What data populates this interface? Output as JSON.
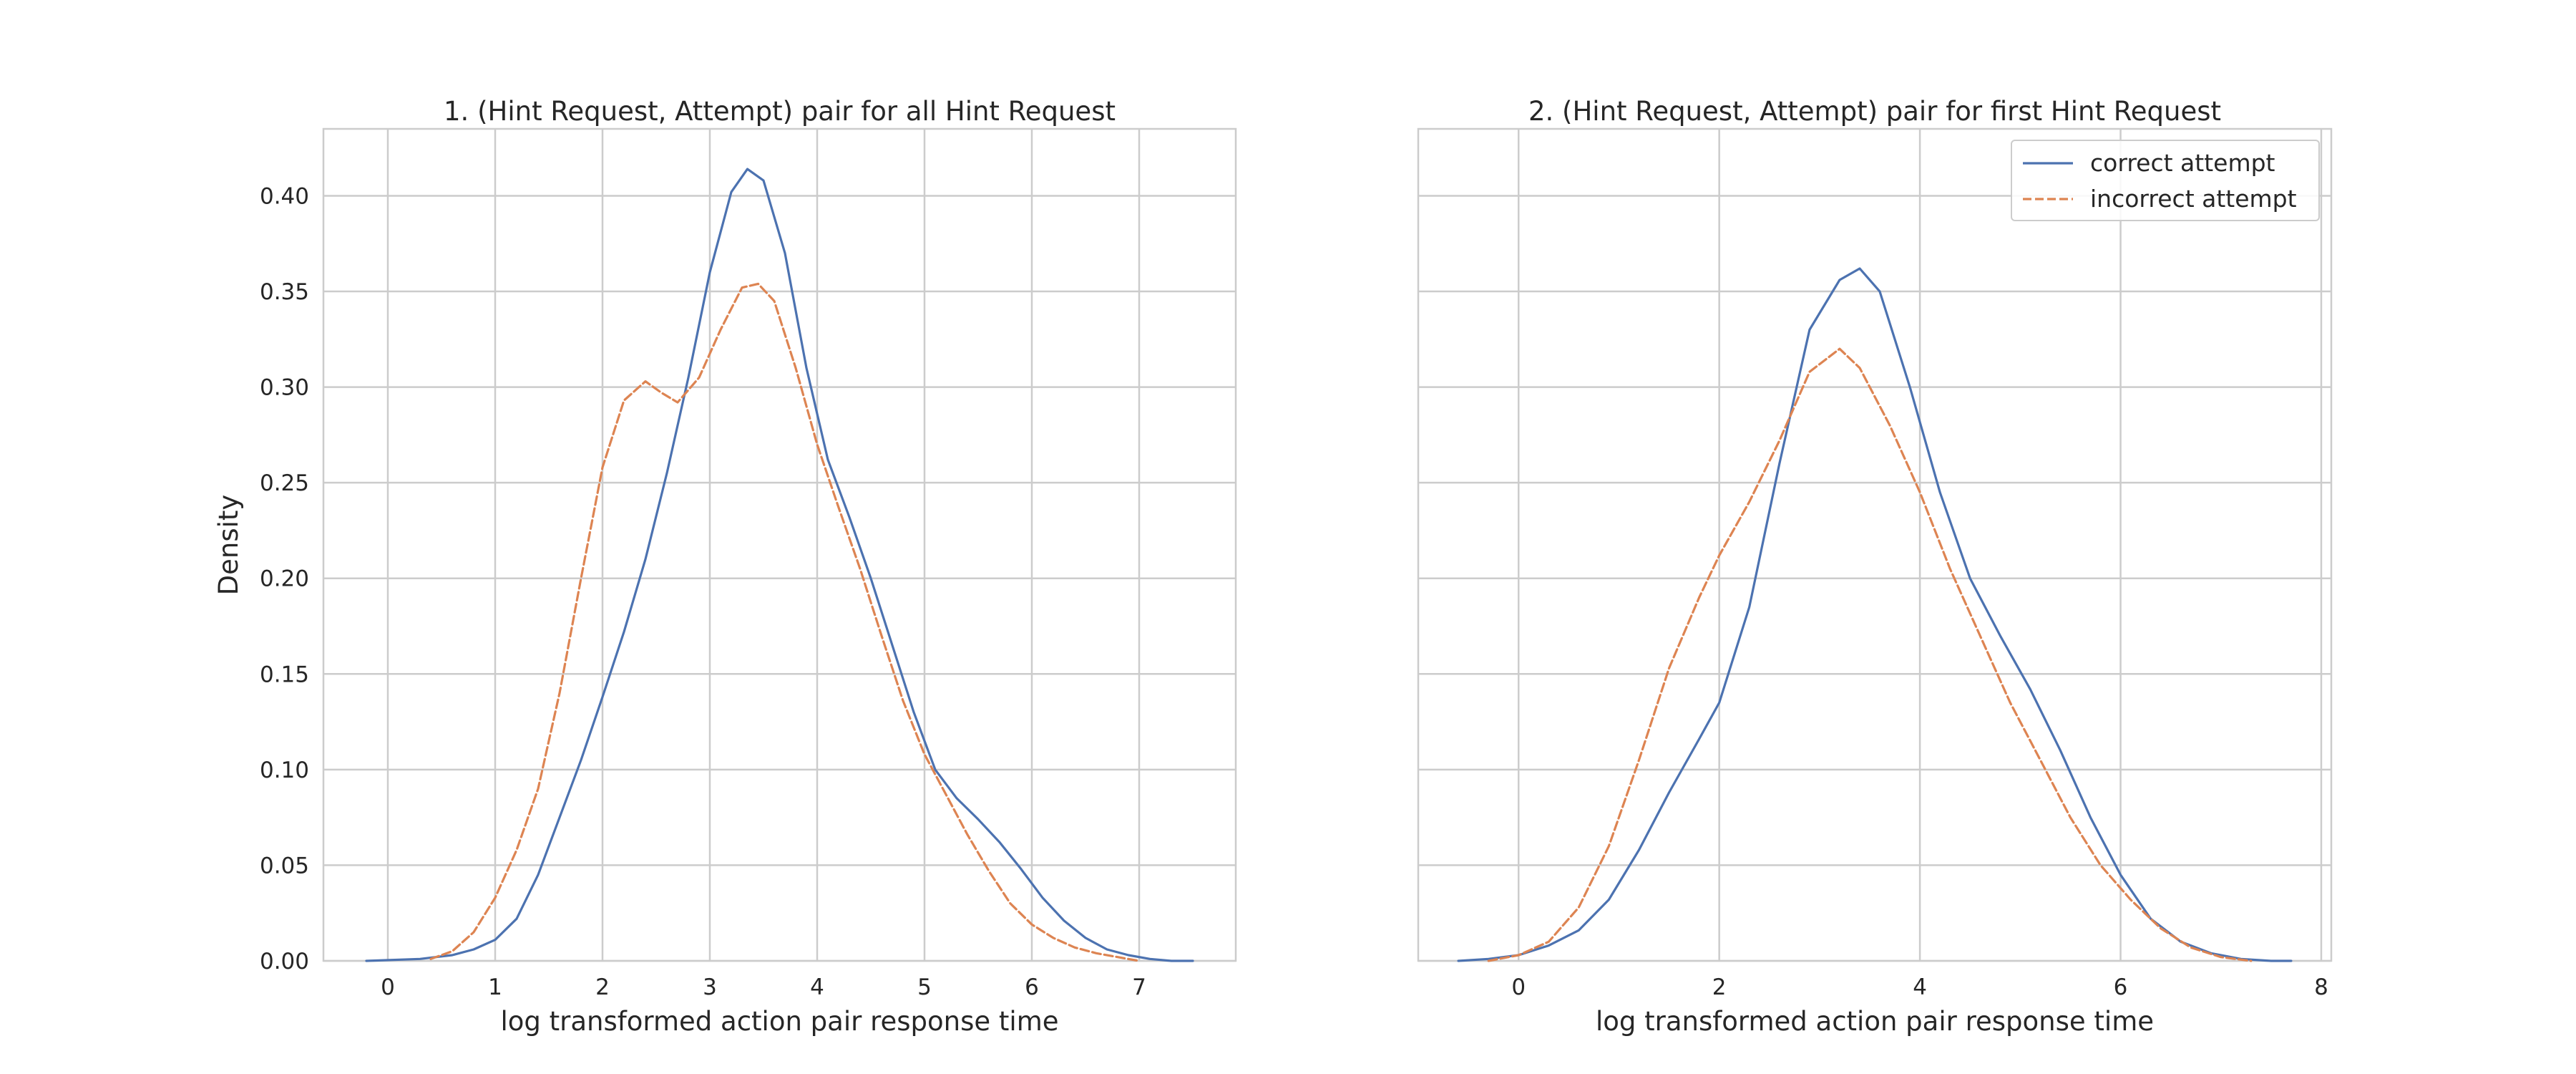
{
  "colors": {
    "correct": "#4c72b0",
    "incorrect": "#dd8452"
  },
  "chart_data": [
    {
      "type": "line",
      "title": "1. (Hint Request, Attempt) pair for all Hint Request",
      "xlabel": "log transformed action pair response time",
      "ylabel": "Density",
      "xlim": [
        -0.6,
        7.9
      ],
      "ylim": [
        0,
        0.435
      ],
      "xticks": [
        0,
        1,
        2,
        3,
        4,
        5,
        6,
        7
      ],
      "xtick_labels": [
        "0",
        "1",
        "2",
        "3",
        "4",
        "5",
        "6",
        "7"
      ],
      "yticks": [
        0,
        0.05,
        0.1,
        0.15,
        0.2,
        0.25,
        0.3,
        0.35,
        0.4
      ],
      "ytick_labels": [
        "0.00",
        "0.05",
        "0.10",
        "0.15",
        "0.20",
        "0.25",
        "0.30",
        "0.35",
        "0.40"
      ],
      "grid": true,
      "legend": "",
      "series": [
        {
          "name": "",
          "style": "solid",
          "color_key": "correct",
          "x": [
            -0.2,
            0.3,
            0.6,
            0.8,
            1.0,
            1.2,
            1.4,
            1.6,
            1.8,
            2.0,
            2.2,
            2.4,
            2.6,
            2.8,
            3.0,
            3.2,
            3.35,
            3.5,
            3.7,
            3.9,
            4.1,
            4.3,
            4.5,
            4.7,
            4.9,
            5.1,
            5.3,
            5.5,
            5.7,
            5.9,
            6.1,
            6.3,
            6.5,
            6.7,
            6.9,
            7.1,
            7.3,
            7.5
          ],
          "y": [
            0.0,
            0.001,
            0.003,
            0.006,
            0.011,
            0.022,
            0.045,
            0.075,
            0.105,
            0.138,
            0.172,
            0.21,
            0.255,
            0.305,
            0.36,
            0.402,
            0.414,
            0.408,
            0.37,
            0.31,
            0.262,
            0.232,
            0.2,
            0.165,
            0.13,
            0.1,
            0.085,
            0.074,
            0.062,
            0.048,
            0.033,
            0.021,
            0.012,
            0.006,
            0.003,
            0.001,
            0.0,
            0.0
          ]
        },
        {
          "name": "",
          "style": "dashed",
          "color_key": "incorrect",
          "x": [
            0.4,
            0.6,
            0.8,
            1.0,
            1.2,
            1.4,
            1.6,
            1.8,
            2.0,
            2.2,
            2.4,
            2.55,
            2.7,
            2.9,
            3.1,
            3.3,
            3.45,
            3.6,
            3.8,
            4.0,
            4.2,
            4.4,
            4.6,
            4.8,
            5.0,
            5.2,
            5.4,
            5.6,
            5.8,
            6.0,
            6.2,
            6.4,
            6.6,
            6.8,
            7.0
          ],
          "y": [
            0.001,
            0.005,
            0.015,
            0.033,
            0.058,
            0.09,
            0.14,
            0.2,
            0.258,
            0.293,
            0.303,
            0.297,
            0.292,
            0.305,
            0.33,
            0.352,
            0.354,
            0.345,
            0.31,
            0.27,
            0.237,
            0.205,
            0.17,
            0.136,
            0.108,
            0.087,
            0.066,
            0.047,
            0.03,
            0.019,
            0.012,
            0.007,
            0.004,
            0.002,
            0.0
          ]
        }
      ]
    },
    {
      "type": "line",
      "title": "2. (Hint Request, Attempt) pair for first Hint Request",
      "xlabel": "log transformed action pair response time",
      "ylabel": "",
      "xlim": [
        -1.0,
        8.1
      ],
      "ylim": [
        0,
        0.435
      ],
      "xticks": [
        0,
        2,
        4,
        6,
        8
      ],
      "xtick_labels": [
        "0",
        "2",
        "4",
        "6",
        "8"
      ],
      "yticks": [
        0,
        0.05,
        0.1,
        0.15,
        0.2,
        0.25,
        0.3,
        0.35,
        0.4
      ],
      "ytick_labels": [],
      "grid": true,
      "legend": "top-right",
      "series": [
        {
          "name": "correct attempt",
          "style": "solid",
          "color_key": "correct",
          "x": [
            -0.6,
            -0.3,
            0.0,
            0.3,
            0.6,
            0.9,
            1.2,
            1.5,
            1.8,
            2.0,
            2.3,
            2.6,
            2.9,
            3.2,
            3.4,
            3.6,
            3.9,
            4.2,
            4.5,
            4.8,
            5.1,
            5.4,
            5.7,
            6.0,
            6.3,
            6.6,
            6.9,
            7.2,
            7.5,
            7.7
          ],
          "y": [
            0.0,
            0.001,
            0.003,
            0.008,
            0.016,
            0.032,
            0.058,
            0.088,
            0.116,
            0.135,
            0.185,
            0.26,
            0.33,
            0.356,
            0.362,
            0.35,
            0.3,
            0.245,
            0.2,
            0.17,
            0.142,
            0.11,
            0.075,
            0.045,
            0.022,
            0.01,
            0.004,
            0.001,
            0.0,
            0.0
          ]
        },
        {
          "name": "incorrect attempt",
          "style": "dashed",
          "color_key": "incorrect",
          "x": [
            -0.3,
            0.0,
            0.3,
            0.6,
            0.9,
            1.2,
            1.5,
            1.8,
            2.0,
            2.3,
            2.6,
            2.9,
            3.2,
            3.4,
            3.7,
            4.0,
            4.3,
            4.6,
            4.9,
            5.2,
            5.5,
            5.8,
            6.1,
            6.4,
            6.7,
            7.0,
            7.3
          ],
          "y": [
            0.0,
            0.003,
            0.01,
            0.028,
            0.06,
            0.105,
            0.153,
            0.19,
            0.212,
            0.24,
            0.272,
            0.308,
            0.32,
            0.31,
            0.28,
            0.245,
            0.205,
            0.17,
            0.135,
            0.105,
            0.075,
            0.05,
            0.032,
            0.017,
            0.007,
            0.002,
            0.0
          ]
        }
      ]
    }
  ]
}
